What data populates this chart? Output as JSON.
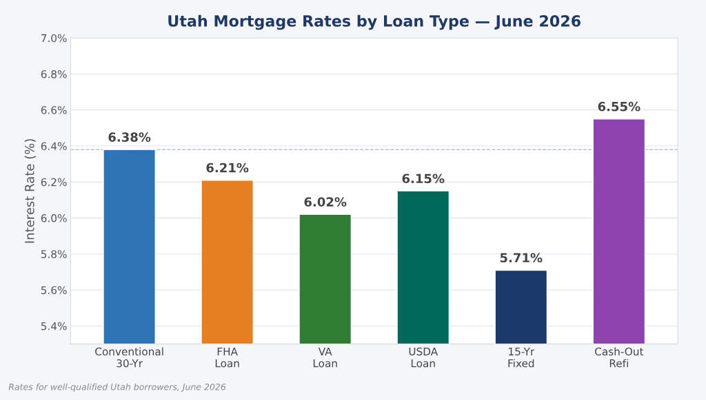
{
  "chart_data": {
    "type": "bar",
    "title": "Utah Mortgage Rates by Loan Type — June 2026",
    "ylabel": "Interest Rate (%)",
    "categories": [
      "Conventional\n30-Yr",
      "FHA\nLoan",
      "VA\nLoan",
      "USDA\nLoan",
      "15-Yr\nFixed",
      "Cash-Out\nRefi"
    ],
    "values": [
      6.38,
      6.21,
      6.02,
      6.15,
      5.71,
      6.55
    ],
    "colors": [
      "#2e75b6",
      "#e67e22",
      "#2e7d32",
      "#00695c",
      "#1b3a6b",
      "#8e44ad"
    ],
    "value_labels": [
      "6.38%",
      "6.21%",
      "6.02%",
      "6.15%",
      "5.71%",
      "6.55%"
    ],
    "ylim": [
      5.3,
      7.0
    ],
    "yticks": [
      {
        "value": 5.4,
        "label": "5.4%"
      },
      {
        "value": 5.6,
        "label": "5.6%"
      },
      {
        "value": 5.8,
        "label": "5.8%"
      },
      {
        "value": 6.0,
        "label": "6.0%"
      },
      {
        "value": 6.2,
        "label": "6.2%"
      },
      {
        "value": 6.4,
        "label": "6.4%"
      },
      {
        "value": 6.6,
        "label": "6.6%"
      },
      {
        "value": 6.8,
        "label": "6.8%"
      },
      {
        "value": 7.0,
        "label": "7.0%"
      }
    ],
    "ref_lines": [
      {
        "axis": "y",
        "value": 6.38,
        "color": "#a9c4dc",
        "line_style": "dashed"
      }
    ],
    "grid": "y",
    "annotations": [
      "Rates for well-qualified Utah borrowers, June 2026"
    ]
  }
}
